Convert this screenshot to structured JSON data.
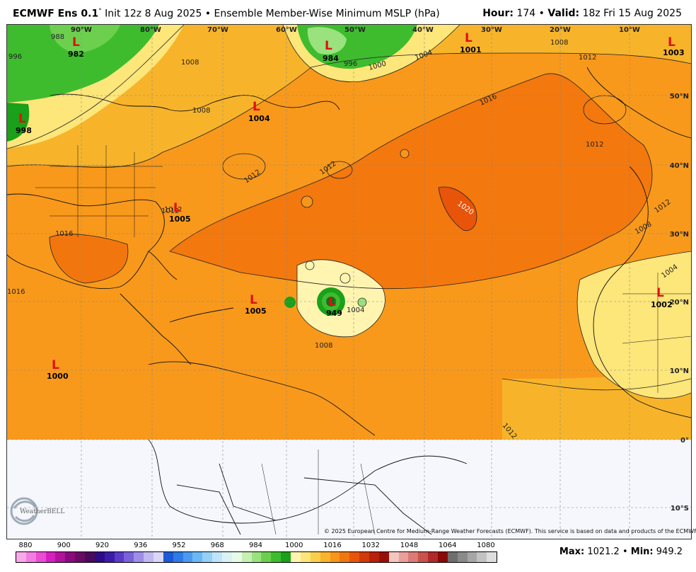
{
  "header": {
    "model": "ECMWF Ens 0.1",
    "degree_mark": "°",
    "init": "Init 12z 8 Aug 2025",
    "sep": "•",
    "product": "Ensemble Member-Wise Minimum MSLP (hPa)",
    "hour_label": "Hour:",
    "hour_value": "174",
    "valid_label": "Valid:",
    "valid_value": "18z Fri 15 Aug 2025"
  },
  "grid_labels": {
    "lon": [
      "90°W",
      "80°W",
      "70°W",
      "60°W",
      "50°W",
      "40°W",
      "30°W",
      "20°W",
      "10°W"
    ],
    "lat": [
      "50°N",
      "40°N",
      "30°N",
      "20°N",
      "10°N",
      "0°",
      "10°S"
    ]
  },
  "lows": [
    {
      "value": "982"
    },
    {
      "value": "984"
    },
    {
      "value": "1001"
    },
    {
      "value": "1003"
    },
    {
      "value": "998"
    },
    {
      "value": "1004"
    },
    {
      "value": "1005"
    },
    {
      "value": "1005"
    },
    {
      "value": "949"
    },
    {
      "value": "1002"
    },
    {
      "value": "1000"
    }
  ],
  "low_symbol": "L",
  "isobar_labels": [
    "996",
    "988",
    "1008",
    "1004",
    "1000",
    "996",
    "1008",
    "1012",
    "1016",
    "1008",
    "1012",
    "1012",
    "1012",
    "1020",
    "1016",
    "1012",
    "1012",
    "1008",
    "1004",
    "1008",
    "1004",
    "1016",
    "1012",
    "1012"
  ],
  "copyright": "© 2025 European Centre for Medium-Range Weather Forecasts (ECMWF). This service is based on data and products of the ECMWF.",
  "logo_text": "WeatherBELL",
  "colorbar": {
    "labels": [
      "880",
      "900",
      "920",
      "936",
      "952",
      "968",
      "984",
      "1000",
      "1016",
      "1032",
      "1048",
      "1064",
      "1080"
    ],
    "colors": [
      "#f7a8e8",
      "#f27ce0",
      "#ea4cd4",
      "#d61fc0",
      "#b0129c",
      "#8a0a7c",
      "#6a0a66",
      "#4a0a5c",
      "#2e0a86",
      "#3a1ca8",
      "#5a3ac6",
      "#7a62da",
      "#9e8ee6",
      "#c0b8f0",
      "#dcd6f6",
      "#1a5ad6",
      "#2f7ae6",
      "#4a9af0",
      "#6ab8f4",
      "#94d0f8",
      "#bde4fa",
      "#d9f2f6",
      "#e8fae8",
      "#c6f0b4",
      "#9ae27e",
      "#6cd04e",
      "#3ebc2e",
      "#1aa01a",
      "#fff5b0",
      "#fde67a",
      "#fbcf4a",
      "#f9b42a",
      "#f7961a",
      "#f2760e",
      "#e8540a",
      "#d23a0a",
      "#b82008",
      "#961008",
      "#f3c6c0",
      "#eaa09a",
      "#dc7a74",
      "#c8524e",
      "#b02a2a",
      "#8a0a0a",
      "#6e6e6e",
      "#8a8a8a",
      "#a6a6a6",
      "#c2c2c2",
      "#dedede"
    ]
  },
  "stats": {
    "max_label": "Max:",
    "max_value": "1021.2",
    "sep": "•",
    "min_label": "Min:",
    "min_value": "949.2"
  }
}
